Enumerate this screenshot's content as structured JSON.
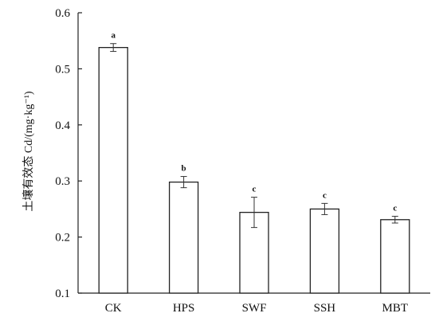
{
  "chart_data": {
    "type": "bar",
    "categories": [
      "CK",
      "HPS",
      "SWF",
      "SSH",
      "MBT"
    ],
    "values": [
      0.538,
      0.298,
      0.244,
      0.25,
      0.231
    ],
    "errors": [
      0.007,
      0.01,
      0.027,
      0.01,
      0.006
    ],
    "significance": [
      "a",
      "b",
      "c",
      "c",
      "c"
    ],
    "ylabel": "土壤有效态 Cd/(mg·kg⁻¹)",
    "xlabel": "",
    "ylim": [
      0.1,
      0.6
    ],
    "yticks": [
      "0.1",
      "0.2",
      "0.3",
      "0.4",
      "0.5",
      "0.6"
    ],
    "bar_fill": "#ffffff",
    "bar_stroke": "#222222",
    "grid": false
  }
}
